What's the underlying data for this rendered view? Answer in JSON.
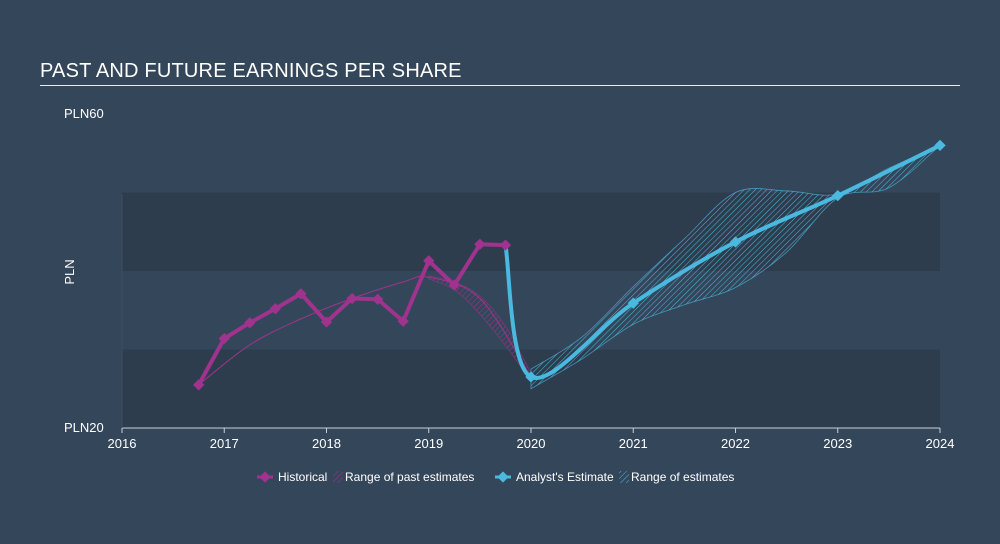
{
  "title": "PAST AND FUTURE EARNINGS PER SHARE",
  "colors": {
    "background": "#34465a",
    "band": "#2e3d4e",
    "historical": "#a0338e",
    "estimate": "#4ab9e0",
    "text": "#ffffff",
    "axis": "#c7d0da"
  },
  "chart_data": {
    "type": "line",
    "title": "PAST AND FUTURE EARNINGS PER SHARE",
    "ylabel": "PLN",
    "xlabel": "",
    "xlim": [
      2016,
      2024.0
    ],
    "ylim": [
      20,
      60
    ],
    "y_tick_labels": [
      {
        "value": 60,
        "label": "PLN60"
      },
      {
        "value": 20,
        "label": "PLN20"
      }
    ],
    "x_ticks": [
      2016,
      2017,
      2018,
      2019,
      2020,
      2021,
      2022,
      2023,
      2024
    ],
    "legend": {
      "placement": "bottom",
      "entries": [
        "Historical",
        "Range of past estimates",
        "Analyst's Estimate",
        "Range of estimates"
      ]
    },
    "series": [
      {
        "name": "Historical",
        "x": [
          2016.75,
          2017.0,
          2017.25,
          2017.5,
          2017.75,
          2018.0,
          2018.25,
          2018.5,
          2018.75,
          2019.0,
          2019.25,
          2019.5,
          2019.75
        ],
        "y": [
          25.5,
          31.4,
          33.4,
          35.2,
          37.1,
          33.5,
          36.5,
          36.4,
          33.6,
          41.3,
          38.2,
          43.4,
          43.3
        ]
      },
      {
        "name": "Analyst's Estimate",
        "x": [
          2019.75,
          2020.0,
          2021.0,
          2022.0,
          2023.0,
          2024.0
        ],
        "y": [
          43.3,
          26.5,
          35.9,
          43.7,
          49.6,
          56.0
        ]
      }
    ],
    "past_estimates_trend": {
      "x": [
        2016.75,
        2017.25,
        2017.75,
        2018.25,
        2018.75,
        2019.0,
        2019.5,
        2020.0
      ],
      "y": [
        25.5,
        30.6,
        33.9,
        36.5,
        38.6,
        39.2,
        36.5,
        26.5
      ]
    },
    "past_estimates_range": {
      "x": [
        2019.0,
        2019.25,
        2019.5,
        2019.75,
        2020.0
      ],
      "low": [
        39.0,
        37.6,
        34.5,
        30.5,
        26.0
      ],
      "high": [
        39.4,
        38.6,
        36.8,
        33.0,
        27.0
      ]
    },
    "estimate_range": {
      "x": [
        2020.0,
        2020.5,
        2021.0,
        2021.5,
        2022.0,
        2022.5,
        2023.0,
        2023.5,
        2024.0
      ],
      "low": [
        25.0,
        28.8,
        33.2,
        35.7,
        37.9,
        42.4,
        49.3,
        50.6,
        56.0
      ],
      "high": [
        27.5,
        31.6,
        38.0,
        44.1,
        50.0,
        50.2,
        49.8,
        53.1,
        56.0
      ]
    }
  }
}
